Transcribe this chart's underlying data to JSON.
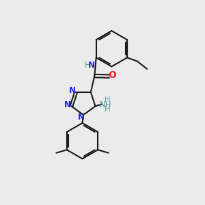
{
  "bg_color": "#ebebeb",
  "bond_color": "#1a1a1a",
  "N_color": "#2020ee",
  "O_color": "#ee2020",
  "NH_color": "#559999",
  "bw": 1.5,
  "fs": 8.5,
  "xlim": [
    0,
    10
  ],
  "ylim": [
    0,
    10
  ]
}
